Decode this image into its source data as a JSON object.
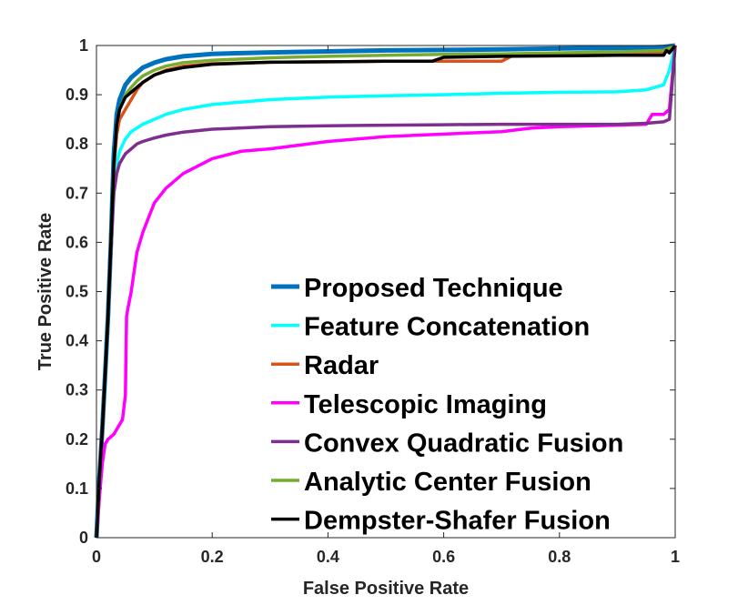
{
  "chart_data": {
    "type": "line",
    "title": "",
    "xlabel": "False Positive Rate",
    "ylabel": "True Positive Rate",
    "xlim": [
      0,
      1
    ],
    "ylim": [
      0,
      1
    ],
    "x_ticks": [
      "0",
      "0.2",
      "0.4",
      "0.6",
      "0.8",
      "1"
    ],
    "y_ticks": [
      "0",
      "0.1",
      "0.2",
      "0.3",
      "0.4",
      "0.5",
      "0.6",
      "0.7",
      "0.8",
      "0.9",
      "1"
    ],
    "grid": false,
    "legend_position": "lower-right",
    "series": [
      {
        "name": "Proposed Technique",
        "color": "#0072BD",
        "x": [
          0,
          0.005,
          0.01,
          0.015,
          0.02,
          0.025,
          0.03,
          0.035,
          0.04,
          0.05,
          0.06,
          0.07,
          0.08,
          0.1,
          0.12,
          0.15,
          0.2,
          0.3,
          0.4,
          0.5,
          0.6,
          0.7,
          0.8,
          0.9,
          0.95,
          0.98,
          1.0
        ],
        "y": [
          0,
          0.12,
          0.22,
          0.33,
          0.45,
          0.6,
          0.78,
          0.86,
          0.89,
          0.92,
          0.935,
          0.945,
          0.955,
          0.965,
          0.972,
          0.978,
          0.983,
          0.986,
          0.988,
          0.99,
          0.991,
          0.992,
          0.994,
          0.995,
          0.996,
          0.997,
          1.0
        ]
      },
      {
        "name": "Feature Concatenation",
        "color": "#00FFFF",
        "x": [
          0,
          0.005,
          0.01,
          0.015,
          0.02,
          0.025,
          0.03,
          0.035,
          0.04,
          0.05,
          0.06,
          0.08,
          0.1,
          0.12,
          0.15,
          0.2,
          0.3,
          0.4,
          0.5,
          0.6,
          0.7,
          0.8,
          0.9,
          0.95,
          0.98,
          0.99,
          1.0
        ],
        "y": [
          0,
          0.12,
          0.22,
          0.33,
          0.45,
          0.58,
          0.7,
          0.76,
          0.785,
          0.81,
          0.825,
          0.84,
          0.85,
          0.86,
          0.87,
          0.88,
          0.89,
          0.895,
          0.898,
          0.9,
          0.903,
          0.905,
          0.906,
          0.91,
          0.92,
          0.95,
          1.0
        ]
      },
      {
        "name": "Radar",
        "color": "#D95319",
        "x": [
          0,
          0.005,
          0.01,
          0.015,
          0.02,
          0.025,
          0.03,
          0.035,
          0.04,
          0.05,
          0.06,
          0.07,
          0.08,
          0.1,
          0.12,
          0.15,
          0.2,
          0.3,
          0.4,
          0.5,
          0.6,
          0.65,
          0.7,
          0.72,
          0.8,
          0.9,
          0.98,
          1.0
        ],
        "y": [
          0,
          0.12,
          0.22,
          0.33,
          0.45,
          0.6,
          0.75,
          0.82,
          0.85,
          0.87,
          0.89,
          0.91,
          0.925,
          0.94,
          0.95,
          0.958,
          0.963,
          0.966,
          0.967,
          0.968,
          0.968,
          0.968,
          0.968,
          0.98,
          0.982,
          0.984,
          0.985,
          1.0
        ]
      },
      {
        "name": "Telescopic Imaging",
        "color": "#FF00FF",
        "x": [
          0,
          0.005,
          0.01,
          0.015,
          0.02,
          0.03,
          0.04,
          0.045,
          0.05,
          0.052,
          0.055,
          0.06,
          0.065,
          0.07,
          0.08,
          0.09,
          0.1,
          0.12,
          0.15,
          0.2,
          0.25,
          0.3,
          0.4,
          0.5,
          0.6,
          0.7,
          0.75,
          0.8,
          0.9,
          0.95,
          0.96,
          0.97,
          0.98,
          0.99,
          1.0
        ],
        "y": [
          0,
          0.08,
          0.15,
          0.19,
          0.2,
          0.21,
          0.23,
          0.24,
          0.29,
          0.45,
          0.47,
          0.5,
          0.54,
          0.58,
          0.62,
          0.65,
          0.68,
          0.71,
          0.74,
          0.77,
          0.785,
          0.79,
          0.805,
          0.815,
          0.82,
          0.825,
          0.832,
          0.835,
          0.838,
          0.84,
          0.86,
          0.86,
          0.86,
          0.87,
          1.0
        ]
      },
      {
        "name": "Convex Quadratic Fusion",
        "color": "#7E2F8E",
        "x": [
          0,
          0.005,
          0.01,
          0.015,
          0.02,
          0.025,
          0.03,
          0.035,
          0.04,
          0.05,
          0.06,
          0.07,
          0.08,
          0.1,
          0.12,
          0.15,
          0.2,
          0.3,
          0.4,
          0.5,
          0.6,
          0.7,
          0.8,
          0.9,
          0.95,
          0.98,
          0.99,
          1.0
        ],
        "y": [
          0,
          0.12,
          0.22,
          0.33,
          0.45,
          0.58,
          0.7,
          0.74,
          0.76,
          0.78,
          0.79,
          0.8,
          0.805,
          0.812,
          0.818,
          0.824,
          0.83,
          0.835,
          0.837,
          0.838,
          0.839,
          0.84,
          0.84,
          0.84,
          0.842,
          0.845,
          0.85,
          1.0
        ]
      },
      {
        "name": "Analytic Center Fusion",
        "color": "#77AC30",
        "x": [
          0,
          0.005,
          0.01,
          0.015,
          0.02,
          0.025,
          0.03,
          0.035,
          0.04,
          0.05,
          0.06,
          0.07,
          0.08,
          0.1,
          0.12,
          0.15,
          0.2,
          0.3,
          0.4,
          0.5,
          0.6,
          0.7,
          0.8,
          0.9,
          0.98,
          1.0
        ],
        "y": [
          0,
          0.12,
          0.22,
          0.33,
          0.45,
          0.6,
          0.76,
          0.84,
          0.87,
          0.9,
          0.915,
          0.928,
          0.938,
          0.95,
          0.958,
          0.965,
          0.97,
          0.975,
          0.978,
          0.98,
          0.982,
          0.983,
          0.985,
          0.987,
          0.99,
          1.0
        ]
      },
      {
        "name": "Dempster-Shafer Fusion",
        "color": "#000000",
        "x": [
          0,
          0.005,
          0.01,
          0.015,
          0.02,
          0.025,
          0.03,
          0.035,
          0.04,
          0.05,
          0.06,
          0.07,
          0.08,
          0.1,
          0.12,
          0.15,
          0.2,
          0.3,
          0.4,
          0.5,
          0.58,
          0.6,
          0.7,
          0.8,
          0.9,
          0.98,
          0.985,
          0.99,
          1.0
        ],
        "y": [
          0,
          0.12,
          0.22,
          0.33,
          0.45,
          0.6,
          0.76,
          0.84,
          0.87,
          0.895,
          0.905,
          0.915,
          0.925,
          0.94,
          0.948,
          0.955,
          0.962,
          0.966,
          0.967,
          0.968,
          0.968,
          0.976,
          0.978,
          0.979,
          0.98,
          0.98,
          0.99,
          0.985,
          1.0
        ]
      }
    ]
  }
}
